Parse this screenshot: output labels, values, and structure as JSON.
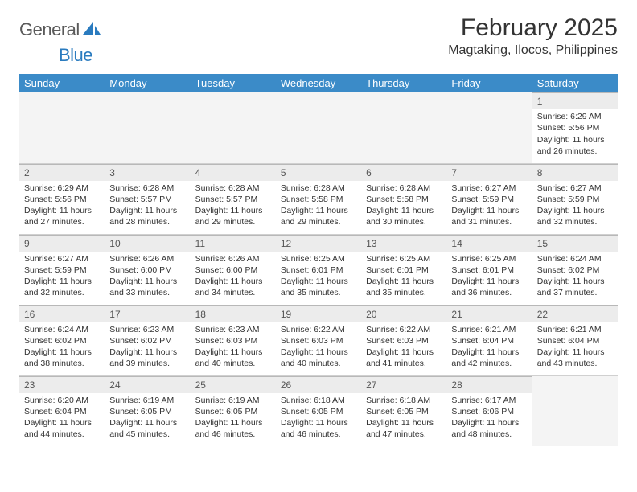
{
  "logo": {
    "text1": "General",
    "text2": "Blue",
    "text_color_gray": "#5a5a5a",
    "text_color_blue": "#2a7bbf",
    "sail_color": "#2a7bbf"
  },
  "title": "February 2025",
  "subtitle": "Magtaking, Ilocos, Philippines",
  "colors": {
    "header_bg": "#3b8bc8",
    "header_text": "#ffffff",
    "daynum_bg": "#ececec",
    "daynum_border": "#b8b8b8",
    "cell_border": "#d0d0d0",
    "empty_bg": "#f4f4f4",
    "body_text": "#333333"
  },
  "daysOfWeek": [
    "Sunday",
    "Monday",
    "Tuesday",
    "Wednesday",
    "Thursday",
    "Friday",
    "Saturday"
  ],
  "weeks": [
    [
      null,
      null,
      null,
      null,
      null,
      null,
      {
        "n": "1",
        "sunrise": "Sunrise: 6:29 AM",
        "sunset": "Sunset: 5:56 PM",
        "day1": "Daylight: 11 hours",
        "day2": "and 26 minutes."
      }
    ],
    [
      {
        "n": "2",
        "sunrise": "Sunrise: 6:29 AM",
        "sunset": "Sunset: 5:56 PM",
        "day1": "Daylight: 11 hours",
        "day2": "and 27 minutes."
      },
      {
        "n": "3",
        "sunrise": "Sunrise: 6:28 AM",
        "sunset": "Sunset: 5:57 PM",
        "day1": "Daylight: 11 hours",
        "day2": "and 28 minutes."
      },
      {
        "n": "4",
        "sunrise": "Sunrise: 6:28 AM",
        "sunset": "Sunset: 5:57 PM",
        "day1": "Daylight: 11 hours",
        "day2": "and 29 minutes."
      },
      {
        "n": "5",
        "sunrise": "Sunrise: 6:28 AM",
        "sunset": "Sunset: 5:58 PM",
        "day1": "Daylight: 11 hours",
        "day2": "and 29 minutes."
      },
      {
        "n": "6",
        "sunrise": "Sunrise: 6:28 AM",
        "sunset": "Sunset: 5:58 PM",
        "day1": "Daylight: 11 hours",
        "day2": "and 30 minutes."
      },
      {
        "n": "7",
        "sunrise": "Sunrise: 6:27 AM",
        "sunset": "Sunset: 5:59 PM",
        "day1": "Daylight: 11 hours",
        "day2": "and 31 minutes."
      },
      {
        "n": "8",
        "sunrise": "Sunrise: 6:27 AM",
        "sunset": "Sunset: 5:59 PM",
        "day1": "Daylight: 11 hours",
        "day2": "and 32 minutes."
      }
    ],
    [
      {
        "n": "9",
        "sunrise": "Sunrise: 6:27 AM",
        "sunset": "Sunset: 5:59 PM",
        "day1": "Daylight: 11 hours",
        "day2": "and 32 minutes."
      },
      {
        "n": "10",
        "sunrise": "Sunrise: 6:26 AM",
        "sunset": "Sunset: 6:00 PM",
        "day1": "Daylight: 11 hours",
        "day2": "and 33 minutes."
      },
      {
        "n": "11",
        "sunrise": "Sunrise: 6:26 AM",
        "sunset": "Sunset: 6:00 PM",
        "day1": "Daylight: 11 hours",
        "day2": "and 34 minutes."
      },
      {
        "n": "12",
        "sunrise": "Sunrise: 6:25 AM",
        "sunset": "Sunset: 6:01 PM",
        "day1": "Daylight: 11 hours",
        "day2": "and 35 minutes."
      },
      {
        "n": "13",
        "sunrise": "Sunrise: 6:25 AM",
        "sunset": "Sunset: 6:01 PM",
        "day1": "Daylight: 11 hours",
        "day2": "and 35 minutes."
      },
      {
        "n": "14",
        "sunrise": "Sunrise: 6:25 AM",
        "sunset": "Sunset: 6:01 PM",
        "day1": "Daylight: 11 hours",
        "day2": "and 36 minutes."
      },
      {
        "n": "15",
        "sunrise": "Sunrise: 6:24 AM",
        "sunset": "Sunset: 6:02 PM",
        "day1": "Daylight: 11 hours",
        "day2": "and 37 minutes."
      }
    ],
    [
      {
        "n": "16",
        "sunrise": "Sunrise: 6:24 AM",
        "sunset": "Sunset: 6:02 PM",
        "day1": "Daylight: 11 hours",
        "day2": "and 38 minutes."
      },
      {
        "n": "17",
        "sunrise": "Sunrise: 6:23 AM",
        "sunset": "Sunset: 6:02 PM",
        "day1": "Daylight: 11 hours",
        "day2": "and 39 minutes."
      },
      {
        "n": "18",
        "sunrise": "Sunrise: 6:23 AM",
        "sunset": "Sunset: 6:03 PM",
        "day1": "Daylight: 11 hours",
        "day2": "and 40 minutes."
      },
      {
        "n": "19",
        "sunrise": "Sunrise: 6:22 AM",
        "sunset": "Sunset: 6:03 PM",
        "day1": "Daylight: 11 hours",
        "day2": "and 40 minutes."
      },
      {
        "n": "20",
        "sunrise": "Sunrise: 6:22 AM",
        "sunset": "Sunset: 6:03 PM",
        "day1": "Daylight: 11 hours",
        "day2": "and 41 minutes."
      },
      {
        "n": "21",
        "sunrise": "Sunrise: 6:21 AM",
        "sunset": "Sunset: 6:04 PM",
        "day1": "Daylight: 11 hours",
        "day2": "and 42 minutes."
      },
      {
        "n": "22",
        "sunrise": "Sunrise: 6:21 AM",
        "sunset": "Sunset: 6:04 PM",
        "day1": "Daylight: 11 hours",
        "day2": "and 43 minutes."
      }
    ],
    [
      {
        "n": "23",
        "sunrise": "Sunrise: 6:20 AM",
        "sunset": "Sunset: 6:04 PM",
        "day1": "Daylight: 11 hours",
        "day2": "and 44 minutes."
      },
      {
        "n": "24",
        "sunrise": "Sunrise: 6:19 AM",
        "sunset": "Sunset: 6:05 PM",
        "day1": "Daylight: 11 hours",
        "day2": "and 45 minutes."
      },
      {
        "n": "25",
        "sunrise": "Sunrise: 6:19 AM",
        "sunset": "Sunset: 6:05 PM",
        "day1": "Daylight: 11 hours",
        "day2": "and 46 minutes."
      },
      {
        "n": "26",
        "sunrise": "Sunrise: 6:18 AM",
        "sunset": "Sunset: 6:05 PM",
        "day1": "Daylight: 11 hours",
        "day2": "and 46 minutes."
      },
      {
        "n": "27",
        "sunrise": "Sunrise: 6:18 AM",
        "sunset": "Sunset: 6:05 PM",
        "day1": "Daylight: 11 hours",
        "day2": "and 47 minutes."
      },
      {
        "n": "28",
        "sunrise": "Sunrise: 6:17 AM",
        "sunset": "Sunset: 6:06 PM",
        "day1": "Daylight: 11 hours",
        "day2": "and 48 minutes."
      },
      null
    ]
  ]
}
